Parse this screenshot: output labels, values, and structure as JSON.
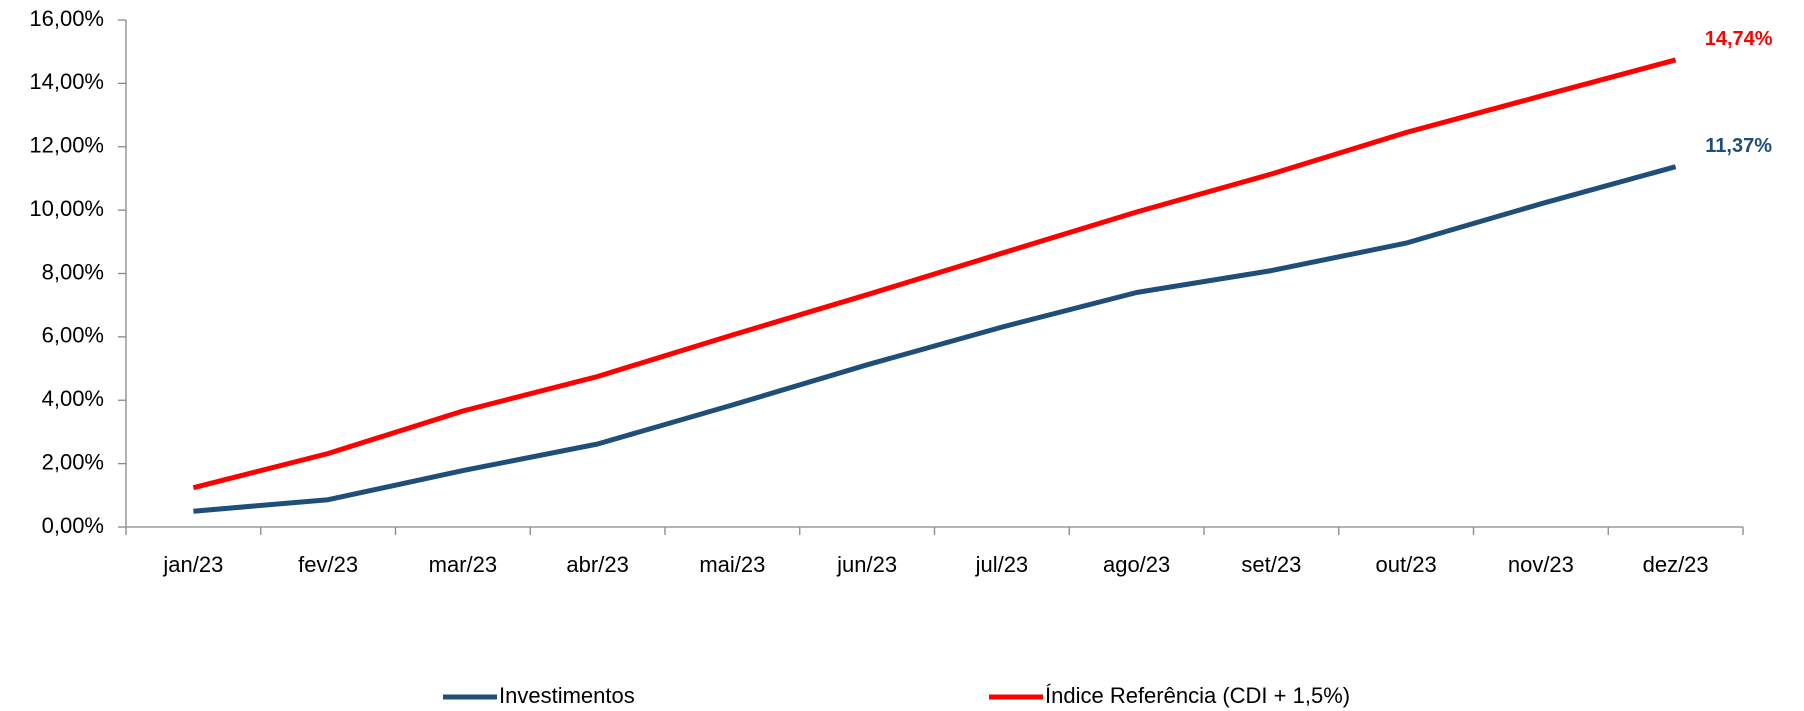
{
  "chart_data": {
    "type": "line",
    "categories": [
      "jan/23",
      "fev/23",
      "mar/23",
      "abr/23",
      "mai/23",
      "jun/23",
      "jul/23",
      "ago/23",
      "set/23",
      "out/23",
      "nov/23",
      "dez/23"
    ],
    "series": [
      {
        "name": "Investimentos",
        "color": "#1f4e79",
        "values": [
          0.5,
          0.86,
          1.78,
          2.62,
          3.85,
          5.12,
          6.31,
          7.4,
          8.09,
          8.96,
          10.2,
          11.37
        ],
        "value_labels": [
          null,
          null,
          null,
          null,
          null,
          null,
          null,
          null,
          null,
          null,
          null,
          "11,37%"
        ]
      },
      {
        "name": "Índice Referência (CDI + 1,5%)",
        "color": "#ff0000",
        "values": [
          1.24,
          2.32,
          3.66,
          4.75,
          6.06,
          7.33,
          8.64,
          9.94,
          11.14,
          12.45,
          13.6,
          14.74
        ],
        "value_labels": [
          null,
          null,
          null,
          null,
          null,
          null,
          null,
          null,
          null,
          null,
          null,
          "14,74%"
        ]
      }
    ],
    "ylim": [
      0,
      16
    ],
    "yticks": [
      {
        "value": 0,
        "label": "0,00%"
      },
      {
        "value": 2,
        "label": "2,00%"
      },
      {
        "value": 4,
        "label": "4,00%"
      },
      {
        "value": 6,
        "label": "6,00%"
      },
      {
        "value": 8,
        "label": "8,00%"
      },
      {
        "value": 10,
        "label": "10,00%"
      },
      {
        "value": 12,
        "label": "12,00%"
      },
      {
        "value": 14,
        "label": "14,00%"
      },
      {
        "value": 16,
        "label": "16,00%"
      }
    ],
    "grid": false,
    "legend": "bottom"
  }
}
